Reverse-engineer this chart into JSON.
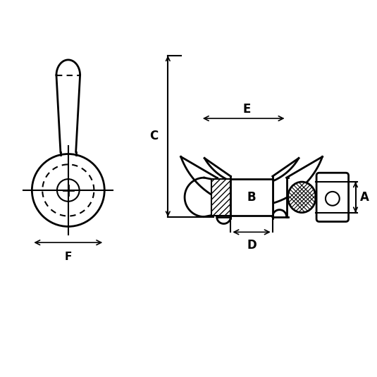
{
  "bg_color": "#ffffff",
  "line_color": "#000000",
  "fig_width": 5.35,
  "fig_height": 5.35,
  "dpi": 100,
  "labels": {
    "A": "A",
    "B": "B",
    "C": "C",
    "D": "D",
    "E": "E",
    "F": "F"
  },
  "label_fontsize": 11
}
